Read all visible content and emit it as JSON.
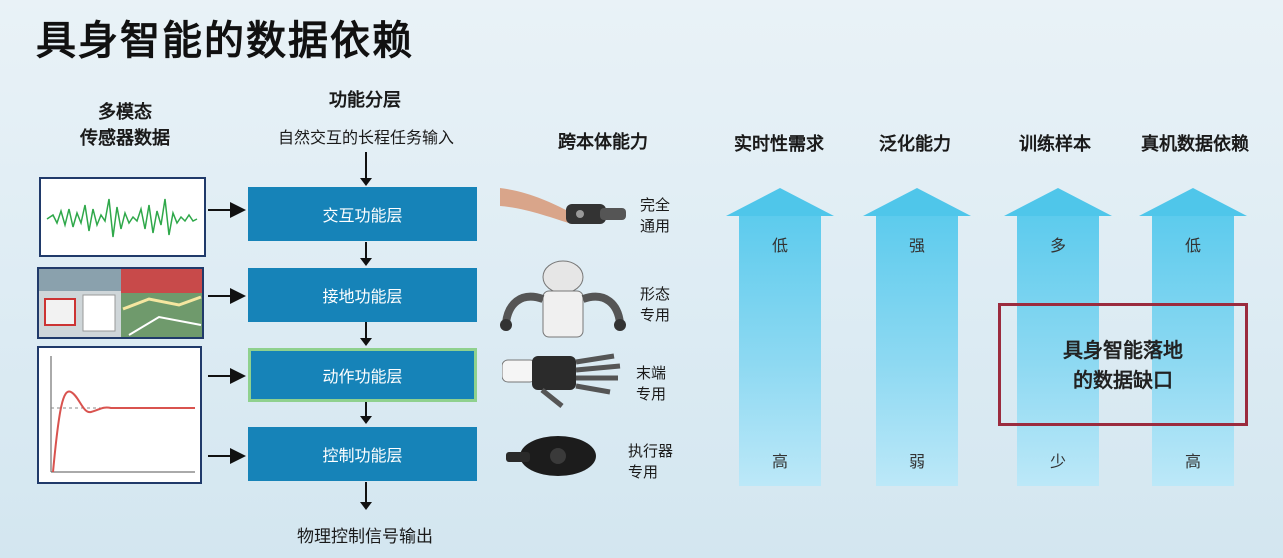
{
  "title": "具身智能的数据依赖",
  "sensor": {
    "header_line1": "多模态",
    "header_line2": "传感器数据"
  },
  "function": {
    "header": "功能分层",
    "input": "自然交互的长程任务输入",
    "layers": [
      "交互功能层",
      "接地功能层",
      "动作功能层",
      "控制功能层"
    ],
    "output": "物理控制信号输出"
  },
  "embodiment": {
    "header": "跨本体能力",
    "labels": [
      [
        "完全",
        "通用"
      ],
      [
        "形态",
        "专用"
      ],
      [
        "末端",
        "专用"
      ],
      [
        "执行器",
        "专用"
      ]
    ]
  },
  "columns": [
    {
      "header": "实时性需求",
      "top": "低",
      "bottom": "高"
    },
    {
      "header": "泛化能力",
      "top": "强",
      "bottom": "弱"
    },
    {
      "header": "训练样本",
      "top": "多",
      "bottom": "少"
    },
    {
      "header": "真机数据依赖",
      "top": "低",
      "bottom": "高"
    }
  ],
  "gap": {
    "line1": "具身智能落地",
    "line2": "的数据缺口"
  },
  "colors": {
    "layer": "#1683b8",
    "arrow": "#4fc6ea",
    "gap_border": "#9b2b3e"
  }
}
